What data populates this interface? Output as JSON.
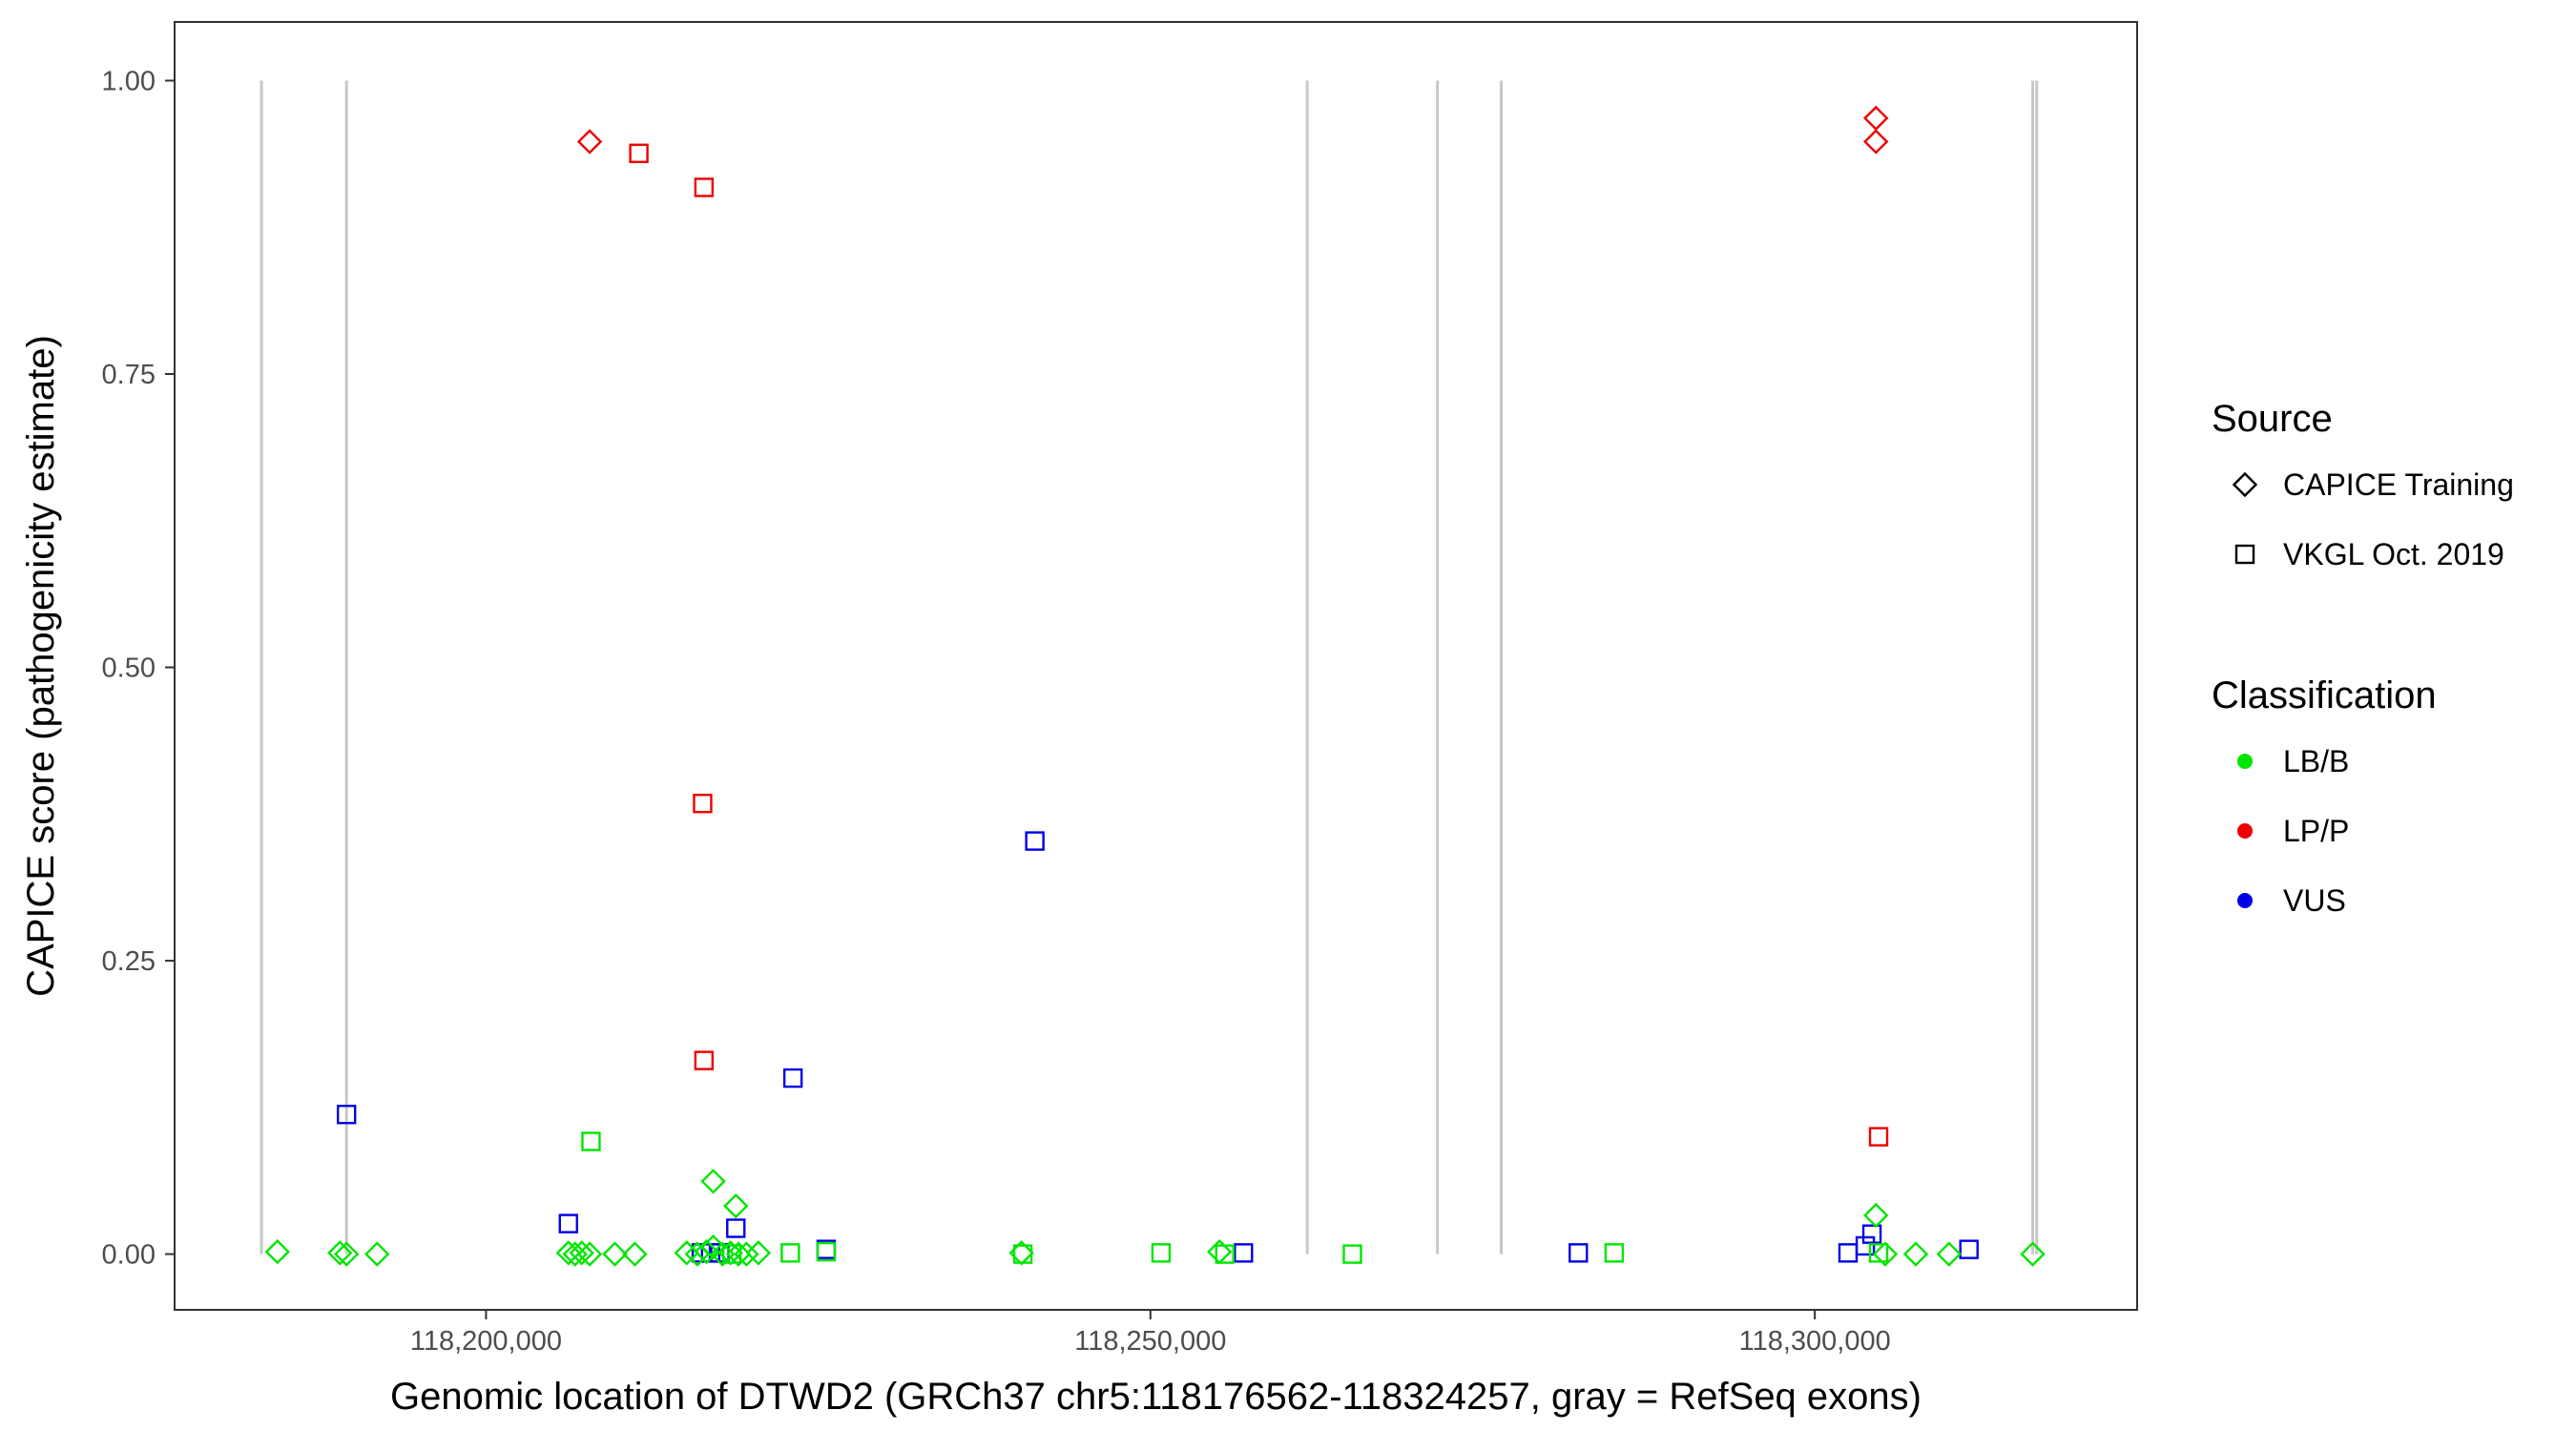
{
  "chart_data": {
    "type": "scatter",
    "title": "",
    "xlabel": "Genomic location of DTWD2 (GRCh37 chr5:118176562-118324257, gray = RefSeq exons)",
    "ylabel": "CAPICE score (pathogenicity estimate)",
    "xlim": [
      118176562,
      118324257
    ],
    "ylim": [
      -0.0475,
      1.05
    ],
    "x_ticks": [
      118200000,
      118250000,
      118300000
    ],
    "x_tick_labels": [
      "118,200,000",
      "118,250,000",
      "118,300,000"
    ],
    "y_ticks": [
      0.0,
      0.25,
      0.5,
      0.75,
      1.0
    ],
    "y_tick_labels": [
      "0.00",
      "0.25",
      "0.50",
      "0.75",
      "1.00"
    ],
    "grid": false,
    "legend_position": "right",
    "exon_lines": [
      {
        "x": 118183100,
        "y0": 0,
        "y1": 1.0
      },
      {
        "x": 118189500,
        "y0": 0,
        "y1": 1.0
      },
      {
        "x": 118261800,
        "y0": 0,
        "y1": 1.0
      },
      {
        "x": 118271600,
        "y0": 0,
        "y1": 1.0
      },
      {
        "x": 118276400,
        "y0": 0,
        "y1": 1.0
      },
      {
        "x": 118316400,
        "y0": 0,
        "y1": 1.0
      },
      {
        "x": 118316700,
        "y0": 0,
        "y1": 1.0
      }
    ],
    "legend": {
      "source": {
        "title": "Source",
        "items": [
          {
            "label": "CAPICE Training",
            "shape": "diamond"
          },
          {
            "label": "VKGL Oct. 2019",
            "shape": "square"
          }
        ]
      },
      "classification": {
        "title": "Classification",
        "items": [
          {
            "label": "LB/B",
            "color": "#00e600"
          },
          {
            "label": "LP/P",
            "color": "#ee0000"
          },
          {
            "label": "VUS",
            "color": "#0000e6"
          }
        ]
      }
    },
    "colors": {
      "LB/B": "#00e600",
      "LP/P": "#ee0000",
      "VUS": "#0000e6"
    },
    "points": [
      {
        "x": 118207800,
        "y": 0.948,
        "source": "CAPICE Training",
        "class": "LP/P"
      },
      {
        "x": 118211500,
        "y": 0.938,
        "source": "VKGL Oct. 2019",
        "class": "LP/P"
      },
      {
        "x": 118216400,
        "y": 0.909,
        "source": "VKGL Oct. 2019",
        "class": "LP/P"
      },
      {
        "x": 118216300,
        "y": 0.384,
        "source": "VKGL Oct. 2019",
        "class": "LP/P"
      },
      {
        "x": 118216400,
        "y": 0.165,
        "source": "VKGL Oct. 2019",
        "class": "LP/P"
      },
      {
        "x": 118304600,
        "y": 0.968,
        "source": "CAPICE Training",
        "class": "LP/P"
      },
      {
        "x": 118304600,
        "y": 0.948,
        "source": "CAPICE Training",
        "class": "LP/P"
      },
      {
        "x": 118304800,
        "y": 0.1,
        "source": "VKGL Oct. 2019",
        "class": "LP/P"
      },
      {
        "x": 118189500,
        "y": 0.119,
        "source": "VKGL Oct. 2019",
        "class": "VUS"
      },
      {
        "x": 118241300,
        "y": 0.352,
        "source": "VKGL Oct. 2019",
        "class": "VUS"
      },
      {
        "x": 118223100,
        "y": 0.15,
        "source": "VKGL Oct. 2019",
        "class": "VUS"
      },
      {
        "x": 118206200,
        "y": 0.026,
        "source": "VKGL Oct. 2019",
        "class": "VUS"
      },
      {
        "x": 118218800,
        "y": 0.022,
        "source": "VKGL Oct. 2019",
        "class": "VUS"
      },
      {
        "x": 118225600,
        "y": 0.004,
        "source": "VKGL Oct. 2019",
        "class": "VUS"
      },
      {
        "x": 118216200,
        "y": 0.001,
        "source": "VKGL Oct. 2019",
        "class": "VUS"
      },
      {
        "x": 118216900,
        "y": 0.001,
        "source": "VKGL Oct. 2019",
        "class": "VUS"
      },
      {
        "x": 118217600,
        "y": 0.001,
        "source": "VKGL Oct. 2019",
        "class": "VUS"
      },
      {
        "x": 118257000,
        "y": 0.001,
        "source": "VKGL Oct. 2019",
        "class": "VUS"
      },
      {
        "x": 118282200,
        "y": 0.001,
        "source": "VKGL Oct. 2019",
        "class": "VUS"
      },
      {
        "x": 118302500,
        "y": 0.001,
        "source": "VKGL Oct. 2019",
        "class": "VUS"
      },
      {
        "x": 118303800,
        "y": 0.007,
        "source": "VKGL Oct. 2019",
        "class": "VUS"
      },
      {
        "x": 118304300,
        "y": 0.017,
        "source": "VKGL Oct. 2019",
        "class": "VUS"
      },
      {
        "x": 118311600,
        "y": 0.004,
        "source": "VKGL Oct. 2019",
        "class": "VUS"
      },
      {
        "x": 118207900,
        "y": 0.096,
        "source": "VKGL Oct. 2019",
        "class": "LB/B"
      },
      {
        "x": 118217100,
        "y": 0.062,
        "source": "CAPICE Training",
        "class": "LB/B"
      },
      {
        "x": 118218800,
        "y": 0.041,
        "source": "CAPICE Training",
        "class": "LB/B"
      },
      {
        "x": 118304600,
        "y": 0.033,
        "source": "CAPICE Training",
        "class": "LB/B"
      },
      {
        "x": 118184300,
        "y": 0.002,
        "source": "CAPICE Training",
        "class": "LB/B"
      },
      {
        "x": 118189000,
        "y": 0.001,
        "source": "CAPICE Training",
        "class": "LB/B"
      },
      {
        "x": 118189500,
        "y": 0.0,
        "source": "CAPICE Training",
        "class": "LB/B"
      },
      {
        "x": 118191800,
        "y": 0.0,
        "source": "CAPICE Training",
        "class": "LB/B"
      },
      {
        "x": 118206200,
        "y": 0.001,
        "source": "CAPICE Training",
        "class": "LB/B"
      },
      {
        "x": 118206700,
        "y": 0.0,
        "source": "CAPICE Training",
        "class": "LB/B"
      },
      {
        "x": 118207200,
        "y": 0.001,
        "source": "CAPICE Training",
        "class": "LB/B"
      },
      {
        "x": 118207800,
        "y": 0.0,
        "source": "CAPICE Training",
        "class": "LB/B"
      },
      {
        "x": 118209700,
        "y": 0.0,
        "source": "CAPICE Training",
        "class": "LB/B"
      },
      {
        "x": 118211200,
        "y": 0.0,
        "source": "CAPICE Training",
        "class": "LB/B"
      },
      {
        "x": 118215100,
        "y": 0.001,
        "source": "CAPICE Training",
        "class": "LB/B"
      },
      {
        "x": 118215900,
        "y": 0.0,
        "source": "CAPICE Training",
        "class": "LB/B"
      },
      {
        "x": 118216600,
        "y": 0.002,
        "source": "CAPICE Training",
        "class": "LB/B"
      },
      {
        "x": 118217100,
        "y": 0.006,
        "source": "CAPICE Training",
        "class": "LB/B"
      },
      {
        "x": 118217800,
        "y": 0.0,
        "source": "CAPICE Training",
        "class": "LB/B"
      },
      {
        "x": 118218400,
        "y": 0.001,
        "source": "CAPICE Training",
        "class": "LB/B"
      },
      {
        "x": 118219000,
        "y": 0.0,
        "source": "CAPICE Training",
        "class": "LB/B"
      },
      {
        "x": 118219600,
        "y": 0.0,
        "source": "CAPICE Training",
        "class": "LB/B"
      },
      {
        "x": 118220500,
        "y": 0.001,
        "source": "CAPICE Training",
        "class": "LB/B"
      },
      {
        "x": 118218500,
        "y": 0.0,
        "source": "VKGL Oct. 2019",
        "class": "LB/B"
      },
      {
        "x": 118222900,
        "y": 0.001,
        "source": "VKGL Oct. 2019",
        "class": "LB/B"
      },
      {
        "x": 118225600,
        "y": 0.002,
        "source": "VKGL Oct. 2019",
        "class": "LB/B"
      },
      {
        "x": 118240300,
        "y": 0.001,
        "source": "CAPICE Training",
        "class": "LB/B"
      },
      {
        "x": 118240400,
        "y": 0.0,
        "source": "VKGL Oct. 2019",
        "class": "LB/B"
      },
      {
        "x": 118250800,
        "y": 0.001,
        "source": "VKGL Oct. 2019",
        "class": "LB/B"
      },
      {
        "x": 118255200,
        "y": 0.002,
        "source": "CAPICE Training",
        "class": "LB/B"
      },
      {
        "x": 118255600,
        "y": 0.0,
        "source": "VKGL Oct. 2019",
        "class": "LB/B"
      },
      {
        "x": 118265200,
        "y": 0.0,
        "source": "VKGL Oct. 2019",
        "class": "LB/B"
      },
      {
        "x": 118284900,
        "y": 0.001,
        "source": "VKGL Oct. 2019",
        "class": "LB/B"
      },
      {
        "x": 118304800,
        "y": 0.001,
        "source": "VKGL Oct. 2019",
        "class": "LB/B"
      },
      {
        "x": 118305300,
        "y": 0.0,
        "source": "CAPICE Training",
        "class": "LB/B"
      },
      {
        "x": 118307600,
        "y": 0.0,
        "source": "CAPICE Training",
        "class": "LB/B"
      },
      {
        "x": 118310100,
        "y": 0.0,
        "source": "CAPICE Training",
        "class": "LB/B"
      },
      {
        "x": 118316400,
        "y": 0.0,
        "source": "CAPICE Training",
        "class": "LB/B"
      }
    ]
  }
}
